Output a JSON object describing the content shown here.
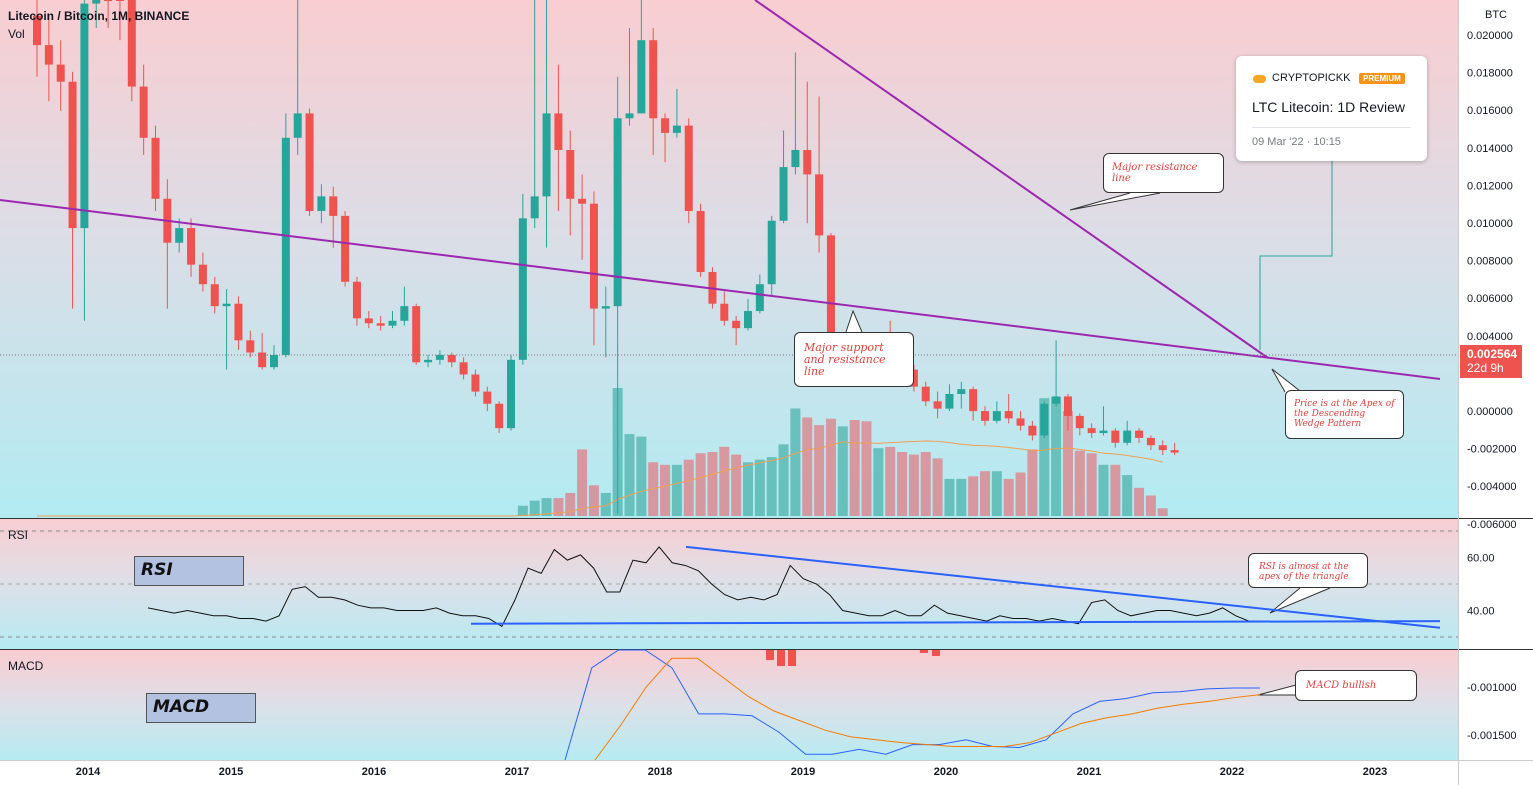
{
  "header": {
    "title": "Litecoin / Bitcoin, 1M, BINANCE",
    "vol_label": "Vol",
    "currency": "BTC"
  },
  "price_badge": {
    "price": "0.002564",
    "countdown": "22d 9h",
    "color": "#ef5350"
  },
  "card": {
    "author": "CRYPTOPICKK",
    "badge": "PREMIUM",
    "title": "LTC Litecoin: 1D Review",
    "date": "09 Mar '22 · 10:15"
  },
  "annotations": {
    "resistance": "Major resistance line",
    "support": "Major support and resistance line",
    "apex": "Price is at the Apex of the Descending Wedge Pattern",
    "rsi_note": "RSI is almost at the apex of the triangle",
    "macd_note": "MACD bullish",
    "rsi_box": "RSI",
    "macd_box": "MACD"
  },
  "panes": {
    "rsi_label": "RSI",
    "macd_label": "MACD"
  },
  "colors": {
    "up": "#26a69a",
    "down": "#ef5350",
    "trendline": "#9c27b0",
    "rsi_trend": "#2962ff"
  },
  "chart_data": [
    {
      "type": "candlestick",
      "title": "Litecoin / Bitcoin, 1M, BINANCE",
      "ylabel": "BTC",
      "ylim": [
        -0.006,
        0.0215
      ],
      "y_ticks": [
        "0.020000",
        "0.018000",
        "0.016000",
        "0.014000",
        "0.012000",
        "0.010000",
        "0.008000",
        "0.006000",
        "0.004000",
        "0.002000",
        "0.000000",
        "-0.002000",
        "-0.004000",
        "-0.006000"
      ],
      "x_ticks": [
        "2014",
        "2015",
        "2016",
        "2017",
        "2018",
        "2019",
        "2020",
        "2021",
        "2022",
        "2023"
      ],
      "candles": [
        [
          0.0205,
          0.0193,
          0.0215,
          0.018
        ],
        [
          0.0193,
          0.0185,
          0.0205,
          0.017
        ],
        [
          0.0185,
          0.0178,
          0.0195,
          0.0166
        ],
        [
          0.0178,
          0.0118,
          0.0182,
          0.0085
        ],
        [
          0.0118,
          0.021,
          0.0215,
          0.008
        ],
        [
          0.021,
          0.0215,
          0.0215,
          0.02
        ],
        [
          0.0215,
          0.0213,
          0.0215,
          0.02
        ],
        [
          0.0213,
          0.0212,
          0.0215,
          0.0195
        ],
        [
          0.0212,
          0.0176,
          0.0215,
          0.017
        ],
        [
          0.0176,
          0.0155,
          0.0185,
          0.0148
        ],
        [
          0.0155,
          0.013,
          0.016,
          0.0125
        ],
        [
          0.013,
          0.0112,
          0.0138,
          0.0085
        ],
        [
          0.0112,
          0.0118,
          0.0122,
          0.0108
        ],
        [
          0.0118,
          0.0103,
          0.0122,
          0.0098
        ],
        [
          0.0103,
          0.0095,
          0.0108,
          0.0092
        ],
        [
          0.0095,
          0.0086,
          0.0098,
          0.0083
        ],
        [
          0.0086,
          0.0087,
          0.0093,
          0.006
        ],
        [
          0.0087,
          0.0072,
          0.009,
          0.0068
        ],
        [
          0.0072,
          0.0067,
          0.0076,
          0.0065
        ],
        [
          0.0067,
          0.0061,
          0.0075,
          0.006
        ],
        [
          0.0061,
          0.0066,
          0.007,
          0.006
        ],
        [
          0.0066,
          0.0155,
          0.0165,
          0.0065
        ],
        [
          0.0155,
          0.0165,
          0.0215,
          0.0148
        ],
        [
          0.0165,
          0.0125,
          0.0167,
          0.0123
        ],
        [
          0.0125,
          0.0131,
          0.0136,
          0.012
        ],
        [
          0.0131,
          0.0123,
          0.0135,
          0.011
        ],
        [
          0.0123,
          0.0096,
          0.0125,
          0.0094
        ],
        [
          0.0096,
          0.0081,
          0.0098,
          0.0078
        ],
        [
          0.0081,
          0.0079,
          0.0084,
          0.0077
        ],
        [
          0.0079,
          0.0078,
          0.0082,
          0.0076
        ],
        [
          0.0078,
          0.008,
          0.0084,
          0.0077
        ],
        [
          0.008,
          0.0086,
          0.0094,
          0.0078
        ],
        [
          0.0086,
          0.0063,
          0.0087,
          0.0062
        ],
        [
          0.0063,
          0.0064,
          0.0066,
          0.0061
        ],
        [
          0.0064,
          0.0066,
          0.0068,
          0.0062
        ],
        [
          0.0066,
          0.0063,
          0.0067,
          0.0061
        ],
        [
          0.0063,
          0.0058,
          0.0065,
          0.0056
        ],
        [
          0.0058,
          0.0051,
          0.006,
          0.0049
        ],
        [
          0.0051,
          0.0046,
          0.0053,
          0.0043
        ],
        [
          0.0046,
          0.0036,
          0.0047,
          0.0034
        ],
        [
          0.0036,
          0.0064,
          0.0066,
          0.0035
        ],
        [
          0.0064,
          0.0122,
          0.0132,
          0.0062
        ],
        [
          0.0122,
          0.0131,
          0.0212,
          0.0118
        ],
        [
          0.0131,
          0.0165,
          0.0212,
          0.011
        ],
        [
          0.0165,
          0.015,
          0.0185,
          0.0125
        ],
        [
          0.015,
          0.013,
          0.0158,
          0.0115
        ],
        [
          0.013,
          0.0128,
          0.014,
          0.0105
        ],
        [
          0.0128,
          0.0085,
          0.0133,
          0.007
        ],
        [
          0.0085,
          0.0086,
          0.0094,
          0.0065
        ],
        [
          0.0086,
          0.0163,
          0.018,
          0.0001
        ],
        [
          0.0163,
          0.0165,
          0.02,
          0.016
        ],
        [
          0.0165,
          0.0195,
          0.0215,
          0.0165
        ],
        [
          0.0195,
          0.0163,
          0.02,
          0.0148
        ],
        [
          0.0163,
          0.0157,
          0.0165,
          0.0145
        ],
        [
          0.0157,
          0.016,
          0.0175,
          0.0155
        ],
        [
          0.016,
          0.0125,
          0.0163,
          0.012
        ],
        [
          0.0125,
          0.01,
          0.0128,
          0.0098
        ],
        [
          0.01,
          0.0087,
          0.0102,
          0.0085
        ],
        [
          0.0087,
          0.008,
          0.0092,
          0.0078
        ],
        [
          0.008,
          0.0077,
          0.0082,
          0.007
        ],
        [
          0.0077,
          0.0084,
          0.0089,
          0.0076
        ],
        [
          0.0084,
          0.0095,
          0.0099,
          0.0083
        ],
        [
          0.0095,
          0.0121,
          0.0123,
          0.009
        ],
        [
          0.0121,
          0.0143,
          0.0158,
          0.012
        ],
        [
          0.0143,
          0.015,
          0.019,
          0.014
        ],
        [
          0.015,
          0.014,
          0.0178,
          0.012
        ],
        [
          0.014,
          0.0115,
          0.0172,
          0.0108
        ],
        [
          0.0115,
          0.0064,
          0.0116,
          0.0063
        ],
        [
          0.0064,
          0.0065,
          0.007,
          0.0061
        ],
        [
          0.0065,
          0.0062,
          0.0068,
          0.006
        ],
        [
          0.0062,
          0.0057,
          0.0065,
          0.0055
        ],
        [
          0.0057,
          0.0072,
          0.0075,
          0.0056
        ],
        [
          0.0072,
          0.0067,
          0.008,
          0.0061
        ],
        [
          0.0067,
          0.006,
          0.0068,
          0.0054
        ],
        [
          0.006,
          0.0053,
          0.0062,
          0.0051
        ],
        [
          0.0053,
          0.0047,
          0.0055,
          0.0045
        ],
        [
          0.0047,
          0.0044,
          0.0051,
          0.004
        ],
        [
          0.0044,
          0.005,
          0.0054,
          0.0043
        ],
        [
          0.005,
          0.0052,
          0.0055,
          0.0044
        ],
        [
          0.0052,
          0.0043,
          0.0053,
          0.0039
        ],
        [
          0.0043,
          0.0039,
          0.0045,
          0.0037
        ],
        [
          0.0039,
          0.0043,
          0.0047,
          0.0038
        ],
        [
          0.0043,
          0.004,
          0.005,
          0.0038
        ],
        [
          0.004,
          0.0037,
          0.0043,
          0.0035
        ],
        [
          0.0037,
          0.0033,
          0.0039,
          0.0031
        ],
        [
          0.0033,
          0.0046,
          0.0047,
          0.0032
        ],
        [
          0.0046,
          0.0049,
          0.0072,
          0.0045
        ],
        [
          0.0049,
          0.0041,
          0.005,
          0.0035
        ],
        [
          0.0041,
          0.0036,
          0.0042,
          0.0033
        ],
        [
          0.0036,
          0.0034,
          0.0038,
          0.0032
        ],
        [
          0.0034,
          0.0035,
          0.0045,
          0.0033
        ],
        [
          0.0035,
          0.003,
          0.0036,
          0.0028
        ],
        [
          0.003,
          0.0035,
          0.0039,
          0.0029
        ],
        [
          0.0035,
          0.0032,
          0.0036,
          0.003
        ],
        [
          0.0032,
          0.0029,
          0.0033,
          0.0027
        ],
        [
          0.0029,
          0.0027,
          0.0031,
          0.0025
        ],
        [
          0.0027,
          0.0026,
          0.003,
          0.0025
        ]
      ],
      "volume": [
        0,
        0,
        0,
        0,
        0,
        0,
        0,
        0,
        0,
        0,
        0,
        0,
        0,
        0,
        0,
        0,
        0,
        0,
        0,
        0,
        0,
        0,
        0,
        0,
        0,
        0,
        0,
        0,
        0,
        0,
        0,
        0,
        0,
        0,
        0,
        0,
        0,
        0,
        0,
        0,
        0,
        0.08,
        0.12,
        0.14,
        0.14,
        0.18,
        0.52,
        0.24,
        0.18,
        1.0,
        0.64,
        0.62,
        0.42,
        0.4,
        0.4,
        0.44,
        0.49,
        0.5,
        0.54,
        0.48,
        0.42,
        0.44,
        0.46,
        0.56,
        0.84,
        0.77,
        0.71,
        0.76,
        0.7,
        0.75,
        0.74,
        0.53,
        0.54,
        0.5,
        0.48,
        0.5,
        0.45,
        0.29,
        0.29,
        0.31,
        0.35,
        0.35,
        0.29,
        0.34,
        0.52,
        0.92,
        0.93,
        0.82,
        0.51,
        0.49,
        0.4,
        0.4,
        0.32,
        0.22,
        0.16,
        0.06
      ],
      "trendlines": {
        "major_resistance": [
          [
            0.029,
            0.0215
          ],
          [
            0.0027,
            0.01
          ]
        ],
        "major_support": [
          [
            0.011,
            0.0013
          ],
          [
            0.0013,
            0.0013
          ]
        ]
      }
    },
    {
      "type": "line",
      "title": "RSI",
      "y_ticks": [
        "60.00",
        "40.00"
      ],
      "ylim": [
        25,
        72
      ],
      "values": [
        41,
        40,
        39,
        40,
        39,
        38,
        38,
        37,
        37,
        36,
        38,
        48,
        49,
        45,
        45,
        44,
        42,
        41,
        41,
        40,
        40,
        40,
        41,
        39,
        38,
        38,
        37,
        34,
        44,
        56,
        54,
        63,
        59,
        61,
        56,
        47,
        47,
        59,
        58,
        64,
        58,
        57,
        55,
        50,
        46,
        44,
        45,
        44,
        46,
        57,
        52,
        50,
        46,
        40,
        39,
        38,
        38,
        40,
        38,
        38,
        42,
        39,
        38,
        37,
        36,
        38,
        37,
        37,
        36,
        37,
        36,
        35,
        43,
        44,
        40,
        38,
        39,
        40,
        40,
        39,
        38,
        39,
        41,
        38,
        36,
        36
      ],
      "trend_top": [
        64,
        36.5
      ],
      "trend_bottom": [
        35,
        36
      ]
    },
    {
      "type": "line",
      "title": "MACD",
      "y_ticks": [
        "-0.001000",
        "-0.001500"
      ],
      "ylim": [
        -0.0019,
        -0.00065
      ],
      "macd": [
        -0.002,
        -0.0008,
        0.001,
        -0.0004,
        -0.0008,
        -0.00128,
        -0.00128,
        -0.0013,
        -0.00147,
        -0.0017,
        -0.0017,
        -0.00165,
        -0.0017,
        -0.0016,
        -0.0016,
        -0.00155,
        -0.00162,
        -0.00163,
        -0.00155,
        -0.00128,
        -0.00115,
        -0.00112,
        -0.00106,
        -0.00105,
        -0.00102,
        -0.00101,
        -0.00101
      ],
      "signal": [
        -0.002,
        -0.0014,
        -0.001,
        -0.0007,
        -0.0007,
        -0.0009,
        -0.0011,
        -0.00125,
        -0.00135,
        -0.00145,
        -0.00152,
        -0.00155,
        -0.00158,
        -0.0016,
        -0.00162,
        -0.00162,
        -0.00162,
        -0.00158,
        -0.00148,
        -0.00138,
        -0.00132,
        -0.00128,
        -0.00122,
        -0.00118,
        -0.00115,
        -0.00111,
        -0.00108
      ]
    }
  ]
}
